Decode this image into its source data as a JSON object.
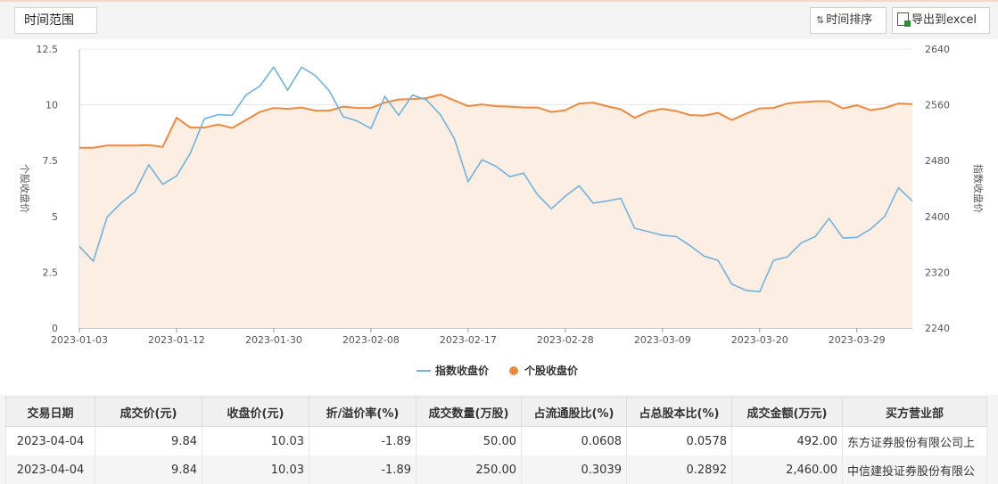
{
  "toolbar": {
    "time_range_label": "时间范围",
    "sort_label": "时间排序",
    "sort_icon": "sort-arrows-icon",
    "export_label": "导出到excel",
    "export_icon": "excel-icon"
  },
  "chart_data": {
    "type": "line",
    "title": "",
    "x": [
      "2023-01-03",
      "2023-01-04",
      "2023-01-05",
      "2023-01-06",
      "2023-01-09",
      "2023-01-10",
      "2023-01-11",
      "2023-01-12",
      "2023-01-13",
      "2023-01-16",
      "2023-01-17",
      "2023-01-18",
      "2023-01-19",
      "2023-01-20",
      "2023-01-30",
      "2023-01-31",
      "2023-02-01",
      "2023-02-02",
      "2023-02-03",
      "2023-02-06",
      "2023-02-07",
      "2023-02-08",
      "2023-02-09",
      "2023-02-10",
      "2023-02-13",
      "2023-02-14",
      "2023-02-15",
      "2023-02-16",
      "2023-02-17",
      "2023-02-20",
      "2023-02-21",
      "2023-02-22",
      "2023-02-23",
      "2023-02-24",
      "2023-02-27",
      "2023-02-28",
      "2023-03-01",
      "2023-03-02",
      "2023-03-03",
      "2023-03-06",
      "2023-03-07",
      "2023-03-08",
      "2023-03-09",
      "2023-03-10",
      "2023-03-13",
      "2023-03-14",
      "2023-03-15",
      "2023-03-16",
      "2023-03-17",
      "2023-03-20",
      "2023-03-21",
      "2023-03-22",
      "2023-03-23",
      "2023-03-24",
      "2023-03-27",
      "2023-03-28",
      "2023-03-29",
      "2023-03-30",
      "2023-03-31",
      "2023-04-03",
      "2023-04-04"
    ],
    "xtick_labels": [
      "2023-01-03",
      "2023-01-12",
      "2023-01-30",
      "2023-02-08",
      "2023-02-17",
      "2023-02-28",
      "2023-03-09",
      "2023-03-20",
      "2023-03-29"
    ],
    "xtick_index": [
      0,
      7,
      14,
      21,
      28,
      35,
      42,
      49,
      56
    ],
    "y_left": {
      "label": "个股收盘价",
      "ticks": [
        "0",
        "2.5",
        "5",
        "7.5",
        "10",
        "12.5"
      ],
      "lim": [
        0,
        12.5
      ]
    },
    "y_right": {
      "label": "指数收盘价",
      "ticks": [
        "2240",
        "2320",
        "2400",
        "2480",
        "2560",
        "2640"
      ],
      "lim": [
        2240,
        2640
      ]
    },
    "series": [
      {
        "name": "指数收盘价",
        "axis": "right",
        "color": "#6fb3e0",
        "values": [
          2357,
          2336,
          2399,
          2419,
          2435,
          2474,
          2446,
          2458,
          2491,
          2540,
          2546,
          2545,
          2574,
          2587,
          2614,
          2581,
          2614,
          2602,
          2580,
          2543,
          2537,
          2526,
          2572,
          2545,
          2574,
          2567,
          2546,
          2512,
          2450,
          2481,
          2472,
          2457,
          2462,
          2431,
          2411,
          2429,
          2444,
          2419,
          2422,
          2426,
          2383,
          2378,
          2373,
          2371,
          2358,
          2343,
          2337,
          2303,
          2294,
          2292,
          2337,
          2342,
          2362,
          2371,
          2397,
          2369,
          2370,
          2382,
          2400,
          2441,
          2422
        ]
      },
      {
        "name": "个股收盘价",
        "axis": "left",
        "color": "#f0883d",
        "values": [
          8.08,
          8.08,
          8.18,
          8.18,
          8.18,
          8.2,
          8.12,
          9.42,
          8.98,
          8.98,
          9.12,
          8.96,
          9.32,
          9.68,
          9.86,
          9.82,
          9.88,
          9.74,
          9.74,
          9.92,
          9.86,
          9.86,
          10.1,
          10.24,
          10.26,
          10.3,
          10.46,
          10.2,
          9.94,
          10.02,
          9.94,
          9.92,
          9.88,
          9.88,
          9.68,
          9.76,
          10.06,
          10.1,
          9.94,
          9.8,
          9.42,
          9.7,
          9.82,
          9.72,
          9.54,
          9.52,
          9.64,
          9.32,
          9.6,
          9.84,
          9.86,
          10.06,
          10.12,
          10.16,
          10.16,
          9.84,
          9.98,
          9.76,
          9.86,
          10.06,
          10.03
        ]
      }
    ],
    "grid": true,
    "legend": "bottom-center",
    "area_fill": "#fdeee3"
  },
  "table": {
    "headers": [
      "交易日期",
      "成交价(元)",
      "收盘价(元)",
      "折/溢价率(%)",
      "成交数量(万股)",
      "占流通股比(%)",
      "占总股本比(%)",
      "成交金额(万元)",
      "买方营业部"
    ],
    "rows": [
      [
        "2023-04-04",
        "9.84",
        "10.03",
        "-1.89",
        "50.00",
        "0.0608",
        "0.0578",
        "492.00",
        "东方证券股份有限公司上"
      ],
      [
        "2023-04-04",
        "9.84",
        "10.03",
        "-1.89",
        "250.00",
        "0.3039",
        "0.2892",
        "2,460.00",
        "中信建投证券股份有限公"
      ]
    ]
  }
}
